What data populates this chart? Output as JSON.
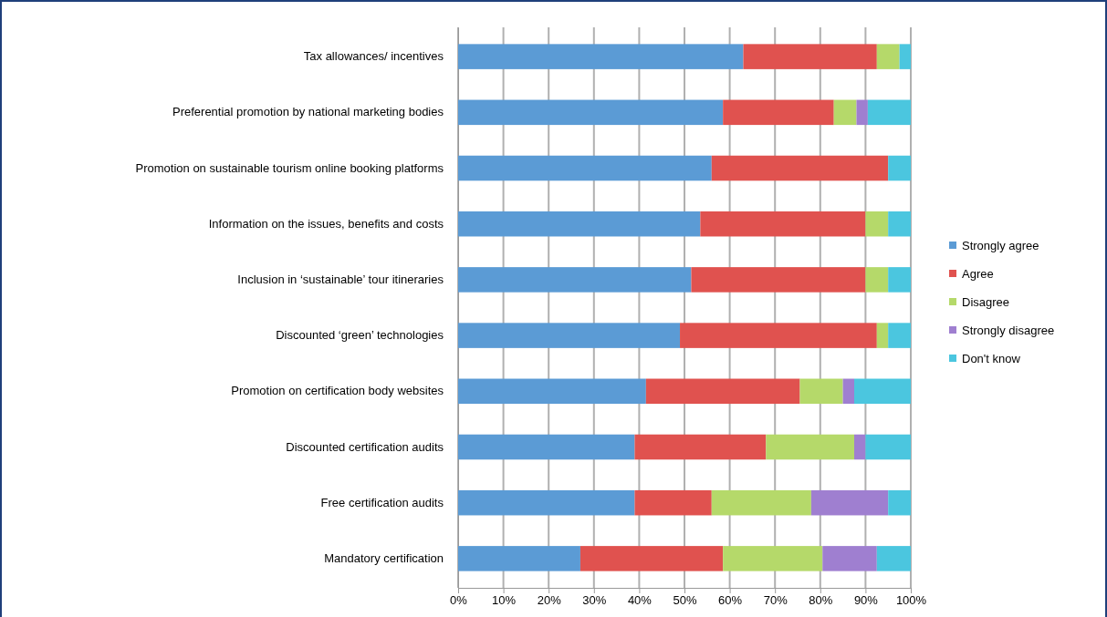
{
  "chart_data": {
    "type": "bar",
    "orientation": "horizontal",
    "stacked": true,
    "categories": [
      "Tax allowances/ incentives",
      "Preferential promotion by national marketing bodies",
      "Promotion on sustainable tourism online booking platforms",
      "Information on the issues, benefits and costs",
      "Inclusion in ‘sustainable’ tour itineraries",
      "Discounted ‘green’ technologies",
      "Promotion on certification body websites",
      "Discounted certification audits",
      "Free certification audits",
      "Mandatory certification"
    ],
    "series": [
      {
        "name": "Strongly agree",
        "color": "#5b9bd5",
        "values": [
          63,
          58.5,
          56,
          53.5,
          51.5,
          49,
          41.5,
          39,
          39,
          27
        ]
      },
      {
        "name": "Agree",
        "color": "#e0524f",
        "values": [
          29.5,
          24.5,
          39,
          36.5,
          38.5,
          43.5,
          34,
          29,
          17,
          31.5
        ]
      },
      {
        "name": "Disagree",
        "color": "#b5d96a",
        "values": [
          5,
          5,
          0,
          5,
          5,
          2.5,
          9.5,
          19.5,
          22,
          22
        ]
      },
      {
        "name": "Strongly disagree",
        "color": "#9f7fd0",
        "values": [
          0,
          2.5,
          0,
          0,
          0,
          0,
          2.5,
          2.5,
          17,
          12
        ]
      },
      {
        "name": "Don't know",
        "color": "#4bc6df",
        "values": [
          2.5,
          9.5,
          5,
          5,
          5,
          5,
          12.5,
          10,
          5,
          7.5
        ]
      }
    ],
    "xlim": [
      0,
      100
    ],
    "xticks": [
      {
        "value": 0,
        "label": "0%"
      },
      {
        "value": 10,
        "label": "10%"
      },
      {
        "value": 20,
        "label": "20%"
      },
      {
        "value": 30,
        "label": "30%"
      },
      {
        "value": 40,
        "label": "40%"
      },
      {
        "value": 50,
        "label": "50%"
      },
      {
        "value": 60,
        "label": "60%"
      },
      {
        "value": 70,
        "label": "70%"
      },
      {
        "value": 80,
        "label": "80%"
      },
      {
        "value": 90,
        "label": "90%"
      },
      {
        "value": 100,
        "label": "100%"
      }
    ],
    "grid": "x",
    "legend": "right"
  }
}
